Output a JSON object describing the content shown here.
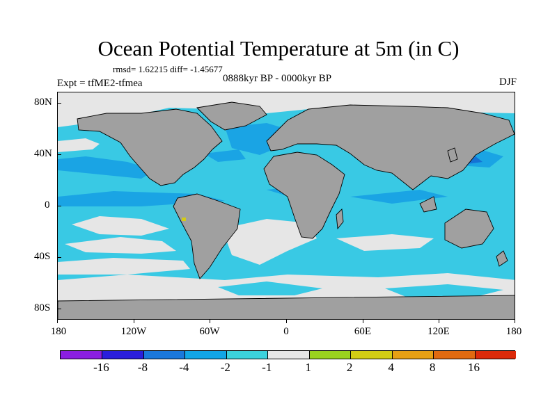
{
  "title": "Ocean Potential Temperature at 5m (in C)",
  "stats": "rmsd= 1.62215  diff= -1.45677",
  "expt": "Expt = tfME2-tfmea",
  "period": "0888kyr BP - 0000kyr BP",
  "season": "DJF",
  "axes": {
    "y_ticks": [
      "80N",
      "40N",
      "0",
      "40S",
      "80S"
    ],
    "x_ticks": [
      "180",
      "120W",
      "60W",
      "0",
      "60E",
      "120E",
      "180"
    ]
  },
  "colors": {
    "land": "#a0a0a0",
    "ocean_base": "#39c9e4",
    "band_mid": "#1aa4e4",
    "band_dark": "#1472d4",
    "neutral": "#e6e6e6",
    "yellow_spot": "#d4cc14"
  },
  "colorbar": {
    "colors": [
      "#8a1ee0",
      "#2a1edc",
      "#1a78dc",
      "#12a6e6",
      "#3cd2dc",
      "#e6e6e6",
      "#9ad21e",
      "#d2cc14",
      "#e6a014",
      "#e06a10",
      "#dc2a0a"
    ],
    "labels": [
      "-16",
      "-8",
      "-4",
      "-2",
      "-1",
      "1",
      "2",
      "4",
      "8",
      "16"
    ]
  }
}
